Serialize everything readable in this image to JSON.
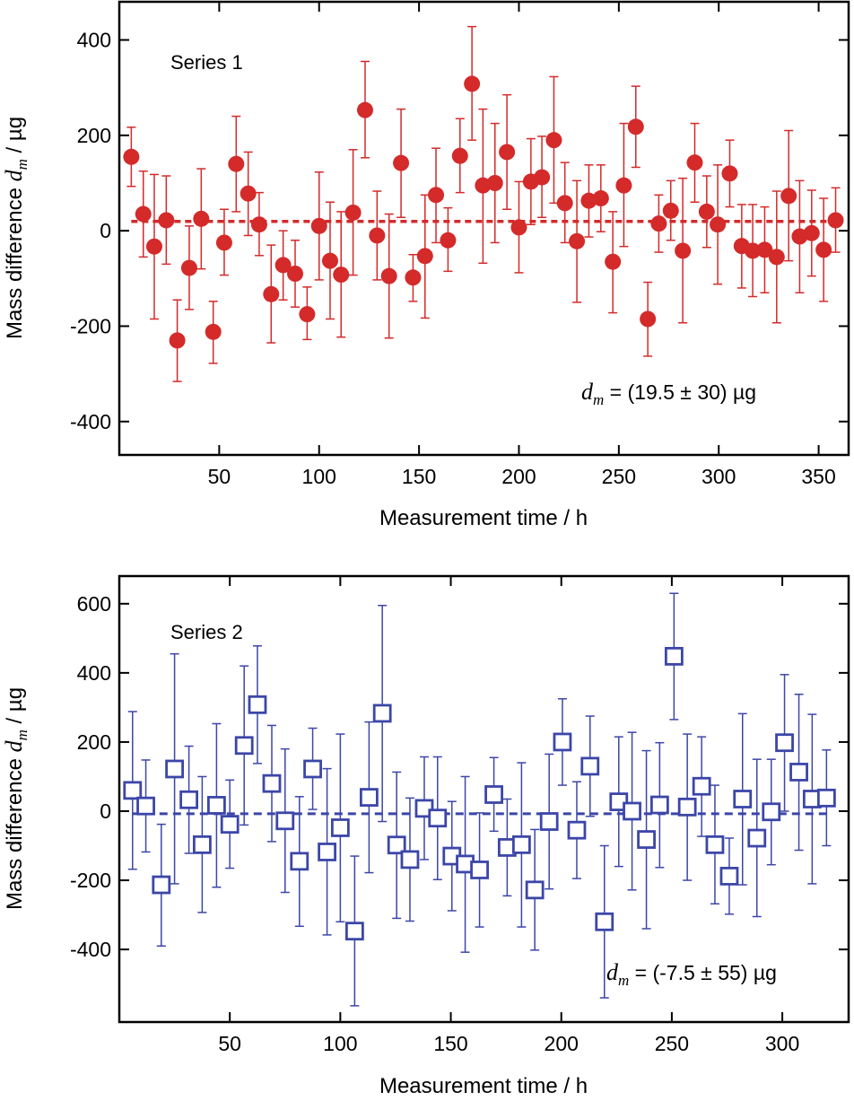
{
  "chart_data": [
    {
      "type": "scatter",
      "marker": "filled-circle",
      "color": "#d42a2a",
      "series_label": "Series 1",
      "xlabel": "Measurement time / h",
      "ylabel_prefix": "Mass difference ",
      "ylabel_var": "d",
      "ylabel_sub": "m",
      "ylabel_suffix": " / µg",
      "xlim": [
        0,
        365
      ],
      "ylim": [
        -470,
        480
      ],
      "xticks": [
        50,
        100,
        150,
        200,
        250,
        300,
        350
      ],
      "xtick_labels": [
        "50",
        "100",
        "150",
        "200",
        "250",
        "300",
        "350"
      ],
      "yticks": [
        -400,
        -200,
        0,
        200,
        400
      ],
      "ytick_labels": [
        "-400",
        "-200",
        "0",
        "200",
        "400"
      ],
      "mean_line": 19.5,
      "annotation_var": "d",
      "annotation_sub": "m",
      "annotation_text": " = (19.5 ± 30)  µg",
      "points": [
        {
          "x": 6,
          "y": 155,
          "lo": 93,
          "hi": 217
        },
        {
          "x": 12,
          "y": 35,
          "lo": -55,
          "hi": 125
        },
        {
          "x": 17.5,
          "y": -33,
          "lo": -185,
          "hi": 118
        },
        {
          "x": 23.5,
          "y": 22,
          "lo": -70,
          "hi": 115
        },
        {
          "x": 29,
          "y": -230,
          "lo": -316,
          "hi": -145
        },
        {
          "x": 35,
          "y": -78,
          "lo": -165,
          "hi": 10
        },
        {
          "x": 41,
          "y": 25,
          "lo": -80,
          "hi": 130
        },
        {
          "x": 47,
          "y": -212,
          "lo": -278,
          "hi": -148
        },
        {
          "x": 52.5,
          "y": -25,
          "lo": -93,
          "hi": 45
        },
        {
          "x": 58.5,
          "y": 140,
          "lo": 40,
          "hi": 240
        },
        {
          "x": 64.5,
          "y": 78,
          "lo": -10,
          "hi": 165
        },
        {
          "x": 70,
          "y": 13,
          "lo": -52,
          "hi": 80
        },
        {
          "x": 76,
          "y": -133,
          "lo": -235,
          "hi": -30
        },
        {
          "x": 82,
          "y": -72,
          "lo": -145,
          "hi": 0
        },
        {
          "x": 88,
          "y": -90,
          "lo": -160,
          "hi": -20
        },
        {
          "x": 94,
          "y": -175,
          "lo": -228,
          "hi": -118
        },
        {
          "x": 100,
          "y": 10,
          "lo": -103,
          "hi": 123
        },
        {
          "x": 105.5,
          "y": -63,
          "lo": -185,
          "hi": 60
        },
        {
          "x": 111,
          "y": -92,
          "lo": -223,
          "hi": 40
        },
        {
          "x": 117,
          "y": 38,
          "lo": -93,
          "hi": 170
        },
        {
          "x": 123,
          "y": 253,
          "lo": 153,
          "hi": 355
        },
        {
          "x": 129,
          "y": -10,
          "lo": -103,
          "hi": 83
        },
        {
          "x": 135,
          "y": -95,
          "lo": -225,
          "hi": 35
        },
        {
          "x": 141,
          "y": 142,
          "lo": 28,
          "hi": 255
        },
        {
          "x": 147,
          "y": -98,
          "lo": -148,
          "hi": -50
        },
        {
          "x": 153,
          "y": -53,
          "lo": -183,
          "hi": 75
        },
        {
          "x": 158.5,
          "y": 75,
          "lo": -25,
          "hi": 173
        },
        {
          "x": 164.5,
          "y": -20,
          "lo": -85,
          "hi": 48
        },
        {
          "x": 170.5,
          "y": 157,
          "lo": 80,
          "hi": 235
        },
        {
          "x": 176.5,
          "y": 308,
          "lo": 190,
          "hi": 428
        },
        {
          "x": 182,
          "y": 95,
          "lo": -68,
          "hi": 255
        },
        {
          "x": 188,
          "y": 100,
          "lo": -25,
          "hi": 225
        },
        {
          "x": 194,
          "y": 165,
          "lo": 45,
          "hi": 285
        },
        {
          "x": 200,
          "y": 7,
          "lo": -88,
          "hi": 103
        },
        {
          "x": 206,
          "y": 103,
          "lo": 13,
          "hi": 193
        },
        {
          "x": 211.5,
          "y": 112,
          "lo": 28,
          "hi": 198
        },
        {
          "x": 217.5,
          "y": 190,
          "lo": 58,
          "hi": 323
        },
        {
          "x": 223,
          "y": 58,
          "lo": -25,
          "hi": 143
        },
        {
          "x": 229,
          "y": -22,
          "lo": -150,
          "hi": 105
        },
        {
          "x": 235,
          "y": 63,
          "lo": -13,
          "hi": 138
        },
        {
          "x": 241,
          "y": 68,
          "lo": -2,
          "hi": 138
        },
        {
          "x": 247,
          "y": -65,
          "lo": -172,
          "hi": 40
        },
        {
          "x": 252.5,
          "y": 95,
          "lo": -33,
          "hi": 225
        },
        {
          "x": 258.5,
          "y": 218,
          "lo": 133,
          "hi": 303
        },
        {
          "x": 264.5,
          "y": -185,
          "lo": -263,
          "hi": -108
        },
        {
          "x": 270,
          "y": 15,
          "lo": -45,
          "hi": 75
        },
        {
          "x": 276,
          "y": 42,
          "lo": -20,
          "hi": 105
        },
        {
          "x": 282,
          "y": -42,
          "lo": -193,
          "hi": 110
        },
        {
          "x": 288,
          "y": 143,
          "lo": 60,
          "hi": 225
        },
        {
          "x": 294,
          "y": 40,
          "lo": -35,
          "hi": 115
        },
        {
          "x": 299.5,
          "y": 13,
          "lo": -112,
          "hi": 138
        },
        {
          "x": 305.5,
          "y": 120,
          "lo": 50,
          "hi": 190
        },
        {
          "x": 311.5,
          "y": -32,
          "lo": -120,
          "hi": 55
        },
        {
          "x": 317,
          "y": -42,
          "lo": -138,
          "hi": 55
        },
        {
          "x": 323,
          "y": -40,
          "lo": -130,
          "hi": 50
        },
        {
          "x": 329,
          "y": -55,
          "lo": -193,
          "hi": 83
        },
        {
          "x": 335,
          "y": 73,
          "lo": -63,
          "hi": 210
        },
        {
          "x": 340.5,
          "y": -12,
          "lo": -130,
          "hi": 105
        },
        {
          "x": 346.5,
          "y": -5,
          "lo": -95,
          "hi": 85
        },
        {
          "x": 352.5,
          "y": -40,
          "lo": -148,
          "hi": 68
        },
        {
          "x": 358.5,
          "y": 22,
          "lo": -45,
          "hi": 90
        }
      ]
    },
    {
      "type": "scatter",
      "marker": "open-square",
      "color": "#3c46a8",
      "series_label": "Series 2",
      "xlabel": "Measurement time / h",
      "ylabel_prefix": "Mass difference ",
      "ylabel_var": "d",
      "ylabel_sub": "m",
      "ylabel_suffix": " / µg",
      "xlim": [
        0,
        330
      ],
      "ylim": [
        -610,
        680
      ],
      "xticks": [
        50,
        100,
        150,
        200,
        250,
        300
      ],
      "xtick_labels": [
        "50",
        "100",
        "150",
        "200",
        "250",
        "300"
      ],
      "yticks": [
        -400,
        -200,
        0,
        200,
        400,
        600
      ],
      "ytick_labels": [
        "-400",
        "-200",
        "0",
        "200",
        "400",
        "600"
      ],
      "mean_line": -7.5,
      "annotation_var": "d",
      "annotation_sub": "m",
      "annotation_text": " = (-7.5 ± 55) µg",
      "points": [
        {
          "x": 6,
          "y": 60,
          "lo": -168,
          "hi": 288
        },
        {
          "x": 12,
          "y": 15,
          "lo": -118,
          "hi": 148
        },
        {
          "x": 19,
          "y": -213,
          "lo": -390,
          "hi": -38
        },
        {
          "x": 25,
          "y": 122,
          "lo": -210,
          "hi": 455
        },
        {
          "x": 31.5,
          "y": 33,
          "lo": -122,
          "hi": 188
        },
        {
          "x": 37.5,
          "y": -97,
          "lo": -293,
          "hi": 100
        },
        {
          "x": 44,
          "y": 17,
          "lo": -220,
          "hi": 253
        },
        {
          "x": 50,
          "y": -38,
          "lo": -165,
          "hi": 90
        },
        {
          "x": 56.5,
          "y": 190,
          "lo": -40,
          "hi": 420
        },
        {
          "x": 62.5,
          "y": 308,
          "lo": 138,
          "hi": 478
        },
        {
          "x": 69,
          "y": 80,
          "lo": -88,
          "hi": 248
        },
        {
          "x": 75,
          "y": -28,
          "lo": -235,
          "hi": 180
        },
        {
          "x": 81.5,
          "y": -145,
          "lo": -333,
          "hi": 42
        },
        {
          "x": 87.5,
          "y": 122,
          "lo": 5,
          "hi": 240
        },
        {
          "x": 94,
          "y": -118,
          "lo": -358,
          "hi": 123
        },
        {
          "x": 100,
          "y": -48,
          "lo": -320,
          "hi": 223
        },
        {
          "x": 106.5,
          "y": -347,
          "lo": -563,
          "hi": -130
        },
        {
          "x": 113,
          "y": 40,
          "lo": -178,
          "hi": 258
        },
        {
          "x": 119,
          "y": 283,
          "lo": -30,
          "hi": 595
        },
        {
          "x": 125.5,
          "y": -98,
          "lo": -310,
          "hi": 113
        },
        {
          "x": 131.5,
          "y": -140,
          "lo": -318,
          "hi": 38
        },
        {
          "x": 138,
          "y": 8,
          "lo": -140,
          "hi": 157
        },
        {
          "x": 144,
          "y": -20,
          "lo": -198,
          "hi": 157
        },
        {
          "x": 150.5,
          "y": -130,
          "lo": -288,
          "hi": 28
        },
        {
          "x": 156.5,
          "y": -153,
          "lo": -408,
          "hi": 100
        },
        {
          "x": 163,
          "y": -170,
          "lo": -335,
          "hi": -5
        },
        {
          "x": 169.5,
          "y": 48,
          "lo": -58,
          "hi": 155
        },
        {
          "x": 175.5,
          "y": -105,
          "lo": -245,
          "hi": 35
        },
        {
          "x": 182,
          "y": -97,
          "lo": -335,
          "hi": 140
        },
        {
          "x": 188,
          "y": -228,
          "lo": -402,
          "hi": -53
        },
        {
          "x": 194.5,
          "y": -30,
          "lo": -225,
          "hi": 165
        },
        {
          "x": 200.5,
          "y": 200,
          "lo": 75,
          "hi": 325
        },
        {
          "x": 207,
          "y": -55,
          "lo": -195,
          "hi": 85
        },
        {
          "x": 213,
          "y": 130,
          "lo": -15,
          "hi": 275
        },
        {
          "x": 219.5,
          "y": -320,
          "lo": -540,
          "hi": -100
        },
        {
          "x": 226,
          "y": 27,
          "lo": -160,
          "hi": 215
        },
        {
          "x": 232,
          "y": 0,
          "lo": -228,
          "hi": 228
        },
        {
          "x": 238.5,
          "y": -82,
          "lo": -340,
          "hi": 175
        },
        {
          "x": 244.5,
          "y": 18,
          "lo": -163,
          "hi": 198
        },
        {
          "x": 251,
          "y": 448,
          "lo": 265,
          "hi": 630
        },
        {
          "x": 257,
          "y": 12,
          "lo": -200,
          "hi": 223
        },
        {
          "x": 263.5,
          "y": 72,
          "lo": -73,
          "hi": 215
        },
        {
          "x": 269.5,
          "y": -97,
          "lo": -268,
          "hi": 75
        },
        {
          "x": 276,
          "y": -188,
          "lo": -298,
          "hi": -78
        },
        {
          "x": 282,
          "y": 35,
          "lo": -213,
          "hi": 282
        },
        {
          "x": 288.5,
          "y": -78,
          "lo": -305,
          "hi": 150
        },
        {
          "x": 295,
          "y": -2,
          "lo": -155,
          "hi": 150
        },
        {
          "x": 301,
          "y": 198,
          "lo": 0,
          "hi": 395
        },
        {
          "x": 307.5,
          "y": 113,
          "lo": -113,
          "hi": 338
        },
        {
          "x": 313.5,
          "y": 35,
          "lo": -210,
          "hi": 280
        },
        {
          "x": 320,
          "y": 38,
          "lo": -100,
          "hi": 177
        }
      ]
    }
  ]
}
